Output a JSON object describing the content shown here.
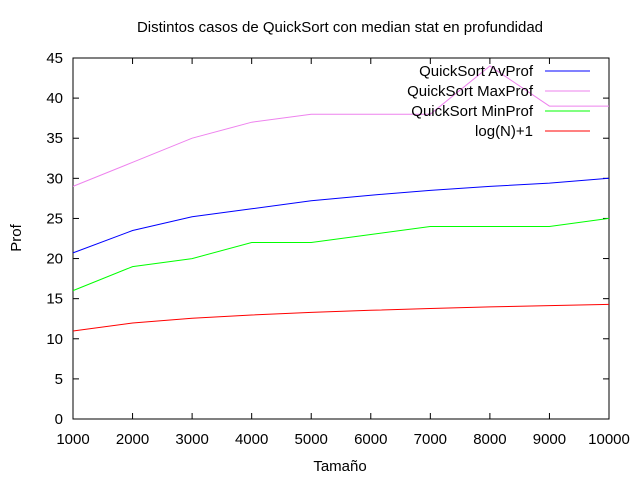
{
  "chart_data": {
    "type": "line",
    "title": "Distintos casos de QuickSort con median stat en profundidad",
    "xlabel": "Tamaño",
    "ylabel": "Prof",
    "xlim": [
      1000,
      10000
    ],
    "ylim": [
      0,
      45
    ],
    "x_ticks": [
      1000,
      2000,
      3000,
      4000,
      5000,
      6000,
      7000,
      8000,
      9000,
      10000
    ],
    "y_ticks": [
      0,
      5,
      10,
      15,
      20,
      25,
      30,
      35,
      40,
      45
    ],
    "grid": false,
    "legend_position": "top-right",
    "x": [
      1000,
      2000,
      3000,
      4000,
      5000,
      6000,
      7000,
      8000,
      9000,
      10000
    ],
    "series": [
      {
        "name": "QuickSort AvProf",
        "color": "#0000ff",
        "values": [
          20.7,
          23.5,
          25.2,
          26.2,
          27.2,
          27.9,
          28.5,
          29.0,
          29.4,
          30.0
        ]
      },
      {
        "name": "QuickSort MaxProf",
        "color": "#ee82ee",
        "values": [
          29,
          32,
          35,
          37,
          38,
          38,
          38,
          44,
          39,
          39
        ]
      },
      {
        "name": "QuickSort MinProf",
        "color": "#00ff00",
        "values": [
          16,
          19,
          20,
          22,
          22,
          23,
          24,
          24,
          24,
          25
        ]
      },
      {
        "name": "log(N)+1",
        "color": "#ff0000",
        "values": [
          10.97,
          11.97,
          12.55,
          12.97,
          13.29,
          13.55,
          13.77,
          13.97,
          14.14,
          14.29
        ]
      }
    ]
  }
}
